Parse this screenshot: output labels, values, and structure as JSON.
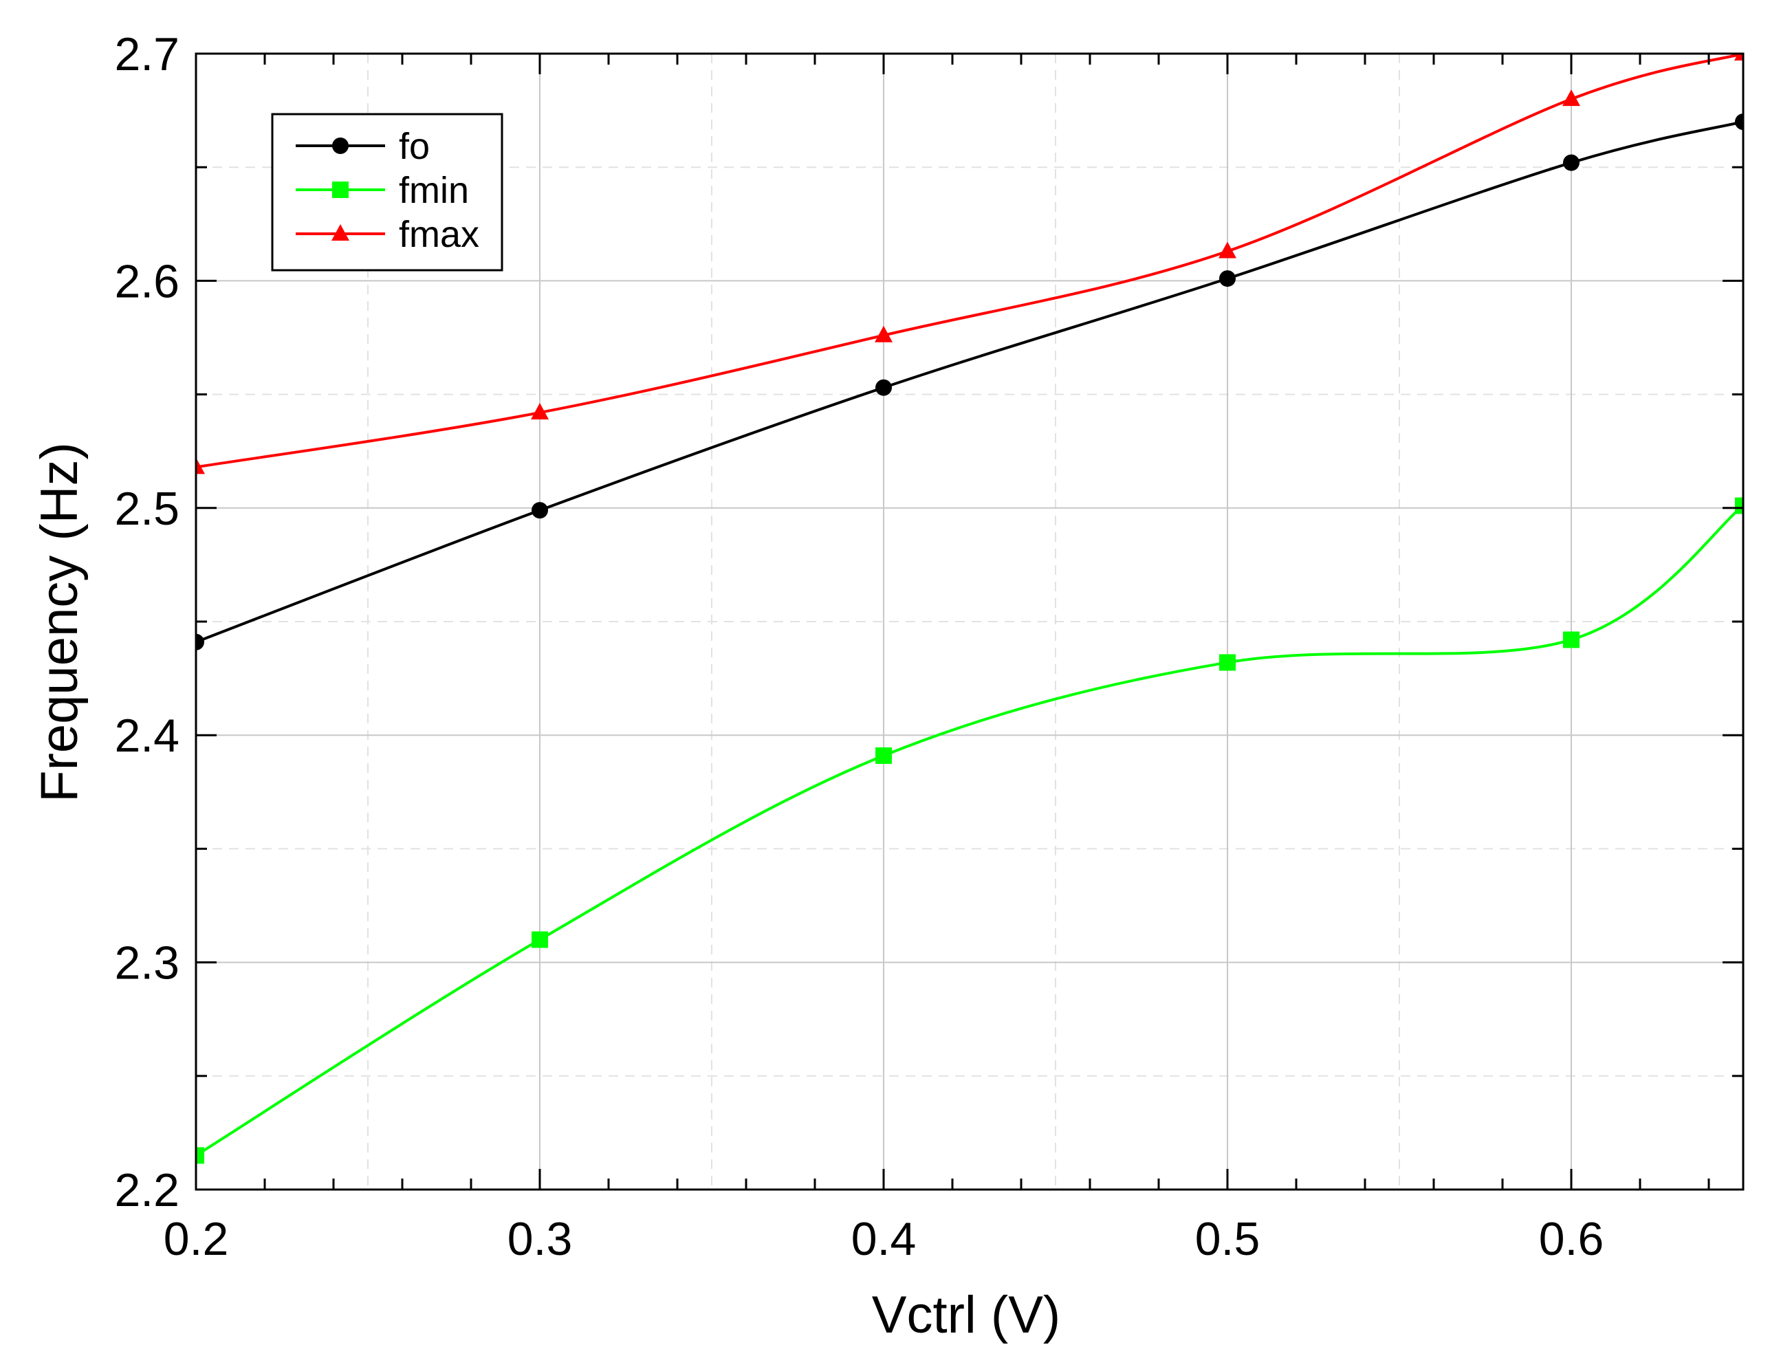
{
  "chart_data": {
    "type": "line",
    "title": "",
    "xlabel": "Vctrl (V)",
    "ylabel": "Frequency (Hz)",
    "xlim": [
      0.2,
      0.65
    ],
    "ylim": [
      2.2,
      2.7
    ],
    "x_ticks": [
      0.2,
      0.3,
      0.4,
      0.5,
      0.6
    ],
    "x_tick_labels": [
      "0.2",
      "0.3",
      "0.4",
      "0.5",
      "0.6"
    ],
    "y_ticks": [
      2.2,
      2.3,
      2.4,
      2.5,
      2.6,
      2.7
    ],
    "y_tick_labels": [
      "2.2",
      "2.3",
      "2.4",
      "2.5",
      "2.6",
      "2.7"
    ],
    "grid": true,
    "legend_position": "top-left",
    "x": [
      0.2,
      0.3,
      0.4,
      0.5,
      0.6,
      0.65
    ],
    "series": [
      {
        "name": "fo",
        "color": "#000000",
        "marker": "circle",
        "values": [
          2.441,
          2.499,
          2.553,
          2.601,
          2.652,
          2.67
        ]
      },
      {
        "name": "fmin",
        "color": "#00ff00",
        "marker": "square",
        "values": [
          2.215,
          2.31,
          2.391,
          2.432,
          2.442,
          2.501
        ]
      },
      {
        "name": "fmax",
        "color": "#ff0000",
        "marker": "triangle",
        "values": [
          2.518,
          2.542,
          2.576,
          2.613,
          2.68,
          2.7
        ]
      }
    ]
  }
}
